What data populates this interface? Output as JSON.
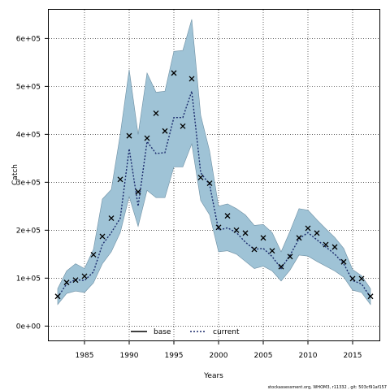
{
  "chart_data": {
    "type": "line",
    "xlabel": "Years",
    "ylabel": "Catch",
    "xlim": [
      1981,
      2018
    ],
    "ylim": [
      -30000,
      660000
    ],
    "x_ticks": [
      1985,
      1990,
      1995,
      2000,
      2005,
      2010,
      2015
    ],
    "x_tick_labels": [
      "1985",
      "1990",
      "1995",
      "2000",
      "2005",
      "2010",
      "2015"
    ],
    "y_ticks": [
      0,
      100000,
      200000,
      300000,
      400000,
      500000,
      600000
    ],
    "y_tick_labels": [
      "0e+00",
      "1e+05",
      "2e+05",
      "3e+05",
      "4e+05",
      "5e+05",
      "6e+05"
    ],
    "grid": true,
    "legend": {
      "placement": "bottom-center",
      "entries": [
        "base",
        "current"
      ]
    },
    "colors": {
      "band": "#9fc3d6",
      "band_edge": "#6d8fa3",
      "current": "#1a2a6c",
      "observed": "#000000",
      "base": "#000000"
    },
    "years": [
      1982,
      1983,
      1984,
      1985,
      1986,
      1987,
      1988,
      1989,
      1990,
      1991,
      1992,
      1993,
      1994,
      1995,
      1996,
      1997,
      1998,
      1999,
      2000,
      2001,
      2002,
      2003,
      2004,
      2005,
      2006,
      2007,
      2008,
      2009,
      2010,
      2011,
      2012,
      2013,
      2014,
      2015,
      2016,
      2017
    ],
    "series": [
      {
        "name": "current",
        "style": "dotted-line",
        "values": [
          60000,
          88000,
          97000,
          95000,
          113000,
          170000,
          195000,
          225000,
          370000,
          250000,
          385000,
          360000,
          362000,
          435000,
          435000,
          490000,
          320000,
          295000,
          200000,
          205000,
          195000,
          175000,
          160000,
          162000,
          145000,
          120000,
          148000,
          182000,
          195000,
          180000,
          165000,
          150000,
          130000,
          95000,
          88000,
          60000
        ]
      },
      {
        "name": "confidence band",
        "style": "shaded-band",
        "upper": [
          78000,
          115000,
          130000,
          120000,
          160000,
          265000,
          285000,
          400000,
          535000,
          400000,
          528000,
          488000,
          490000,
          573000,
          575000,
          640000,
          440000,
          365000,
          250000,
          255000,
          245000,
          232000,
          210000,
          212000,
          195000,
          155000,
          198000,
          245000,
          242000,
          222000,
          203000,
          185000,
          162000,
          118000,
          105000,
          78000
        ],
        "lower": [
          45000,
          68000,
          73000,
          70000,
          90000,
          130000,
          155000,
          195000,
          270000,
          208000,
          283000,
          268000,
          268000,
          332000,
          332000,
          380000,
          262000,
          232000,
          155000,
          157000,
          150000,
          135000,
          120000,
          125000,
          115000,
          94000,
          117000,
          148000,
          146000,
          135000,
          125000,
          115000,
          102000,
          75000,
          70000,
          45000
        ]
      },
      {
        "name": "observed",
        "style": "x-markers",
        "values": [
          62000,
          91000,
          96000,
          104000,
          149000,
          187000,
          225000,
          306000,
          397000,
          280000,
          392000,
          444000,
          407000,
          528000,
          417000,
          516000,
          310000,
          298000,
          206000,
          230000,
          200000,
          194000,
          160000,
          184000,
          157000,
          124000,
          145000,
          184000,
          204000,
          194000,
          170000,
          165000,
          134000,
          99000,
          99000,
          62000
        ]
      }
    ],
    "footer": "stockassessment.org, WHOM3, r11332 ,  git: 503cf91af157"
  }
}
